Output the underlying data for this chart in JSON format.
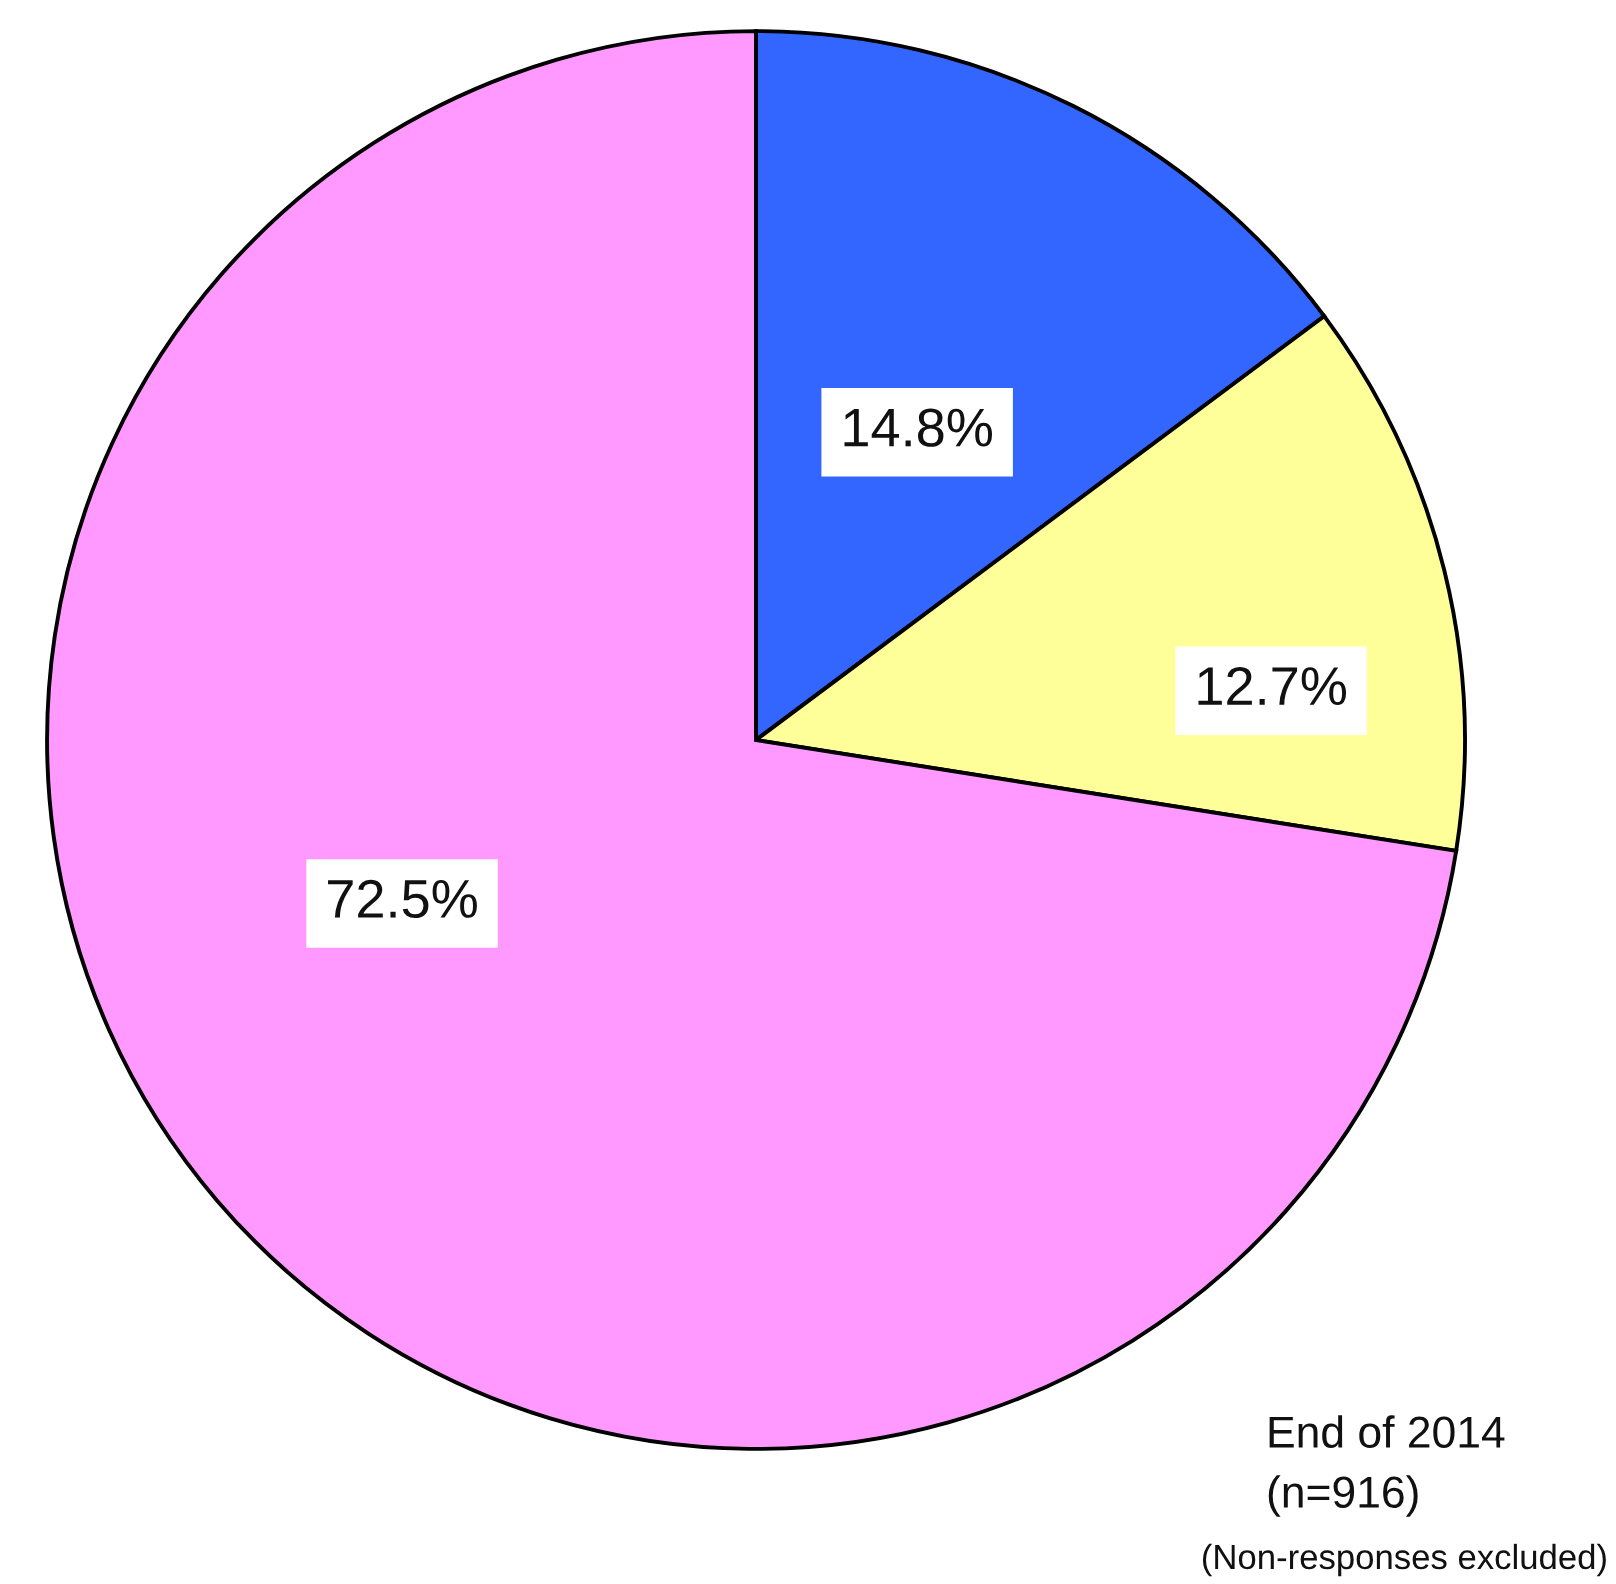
{
  "chart_data": {
    "type": "pie",
    "categories": [
      null,
      null,
      null
    ],
    "values": [
      14.8,
      12.7,
      72.5
    ],
    "colors": [
      "#3366ff",
      "#ffff99",
      "#ff99ff"
    ],
    "value_labels": [
      "14.8%",
      "12.7%",
      "72.5%"
    ],
    "annotations": [
      "End of 2014",
      "(n=916)",
      "(Non-responses excluded)"
    ]
  }
}
